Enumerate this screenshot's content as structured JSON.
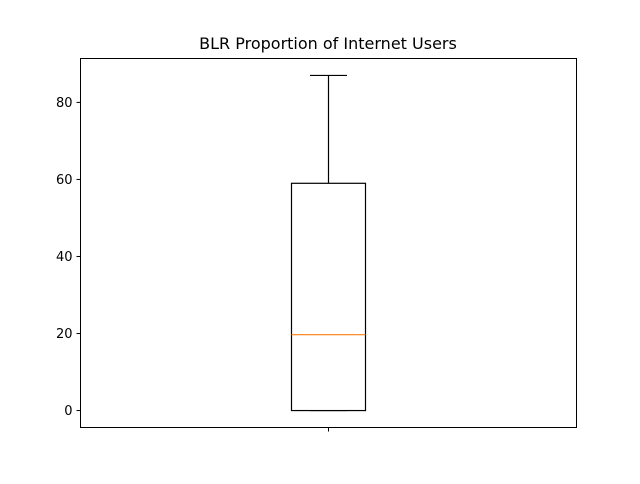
{
  "chart_data": {
    "type": "box",
    "title": "BLR Proportion of Internet Users",
    "xlabel": "",
    "ylabel": "",
    "ylim": [
      -4.4,
      91.4
    ],
    "yticks": [
      0,
      20,
      40,
      60,
      80
    ],
    "grid": false,
    "boxes": [
      {
        "whisker_low": 0,
        "q1": 0,
        "median": 19.7,
        "q3": 59,
        "whisker_high": 87
      }
    ]
  },
  "colors": {
    "box": "#000000",
    "median": "#ff7f0e",
    "background": "#ffffff"
  }
}
